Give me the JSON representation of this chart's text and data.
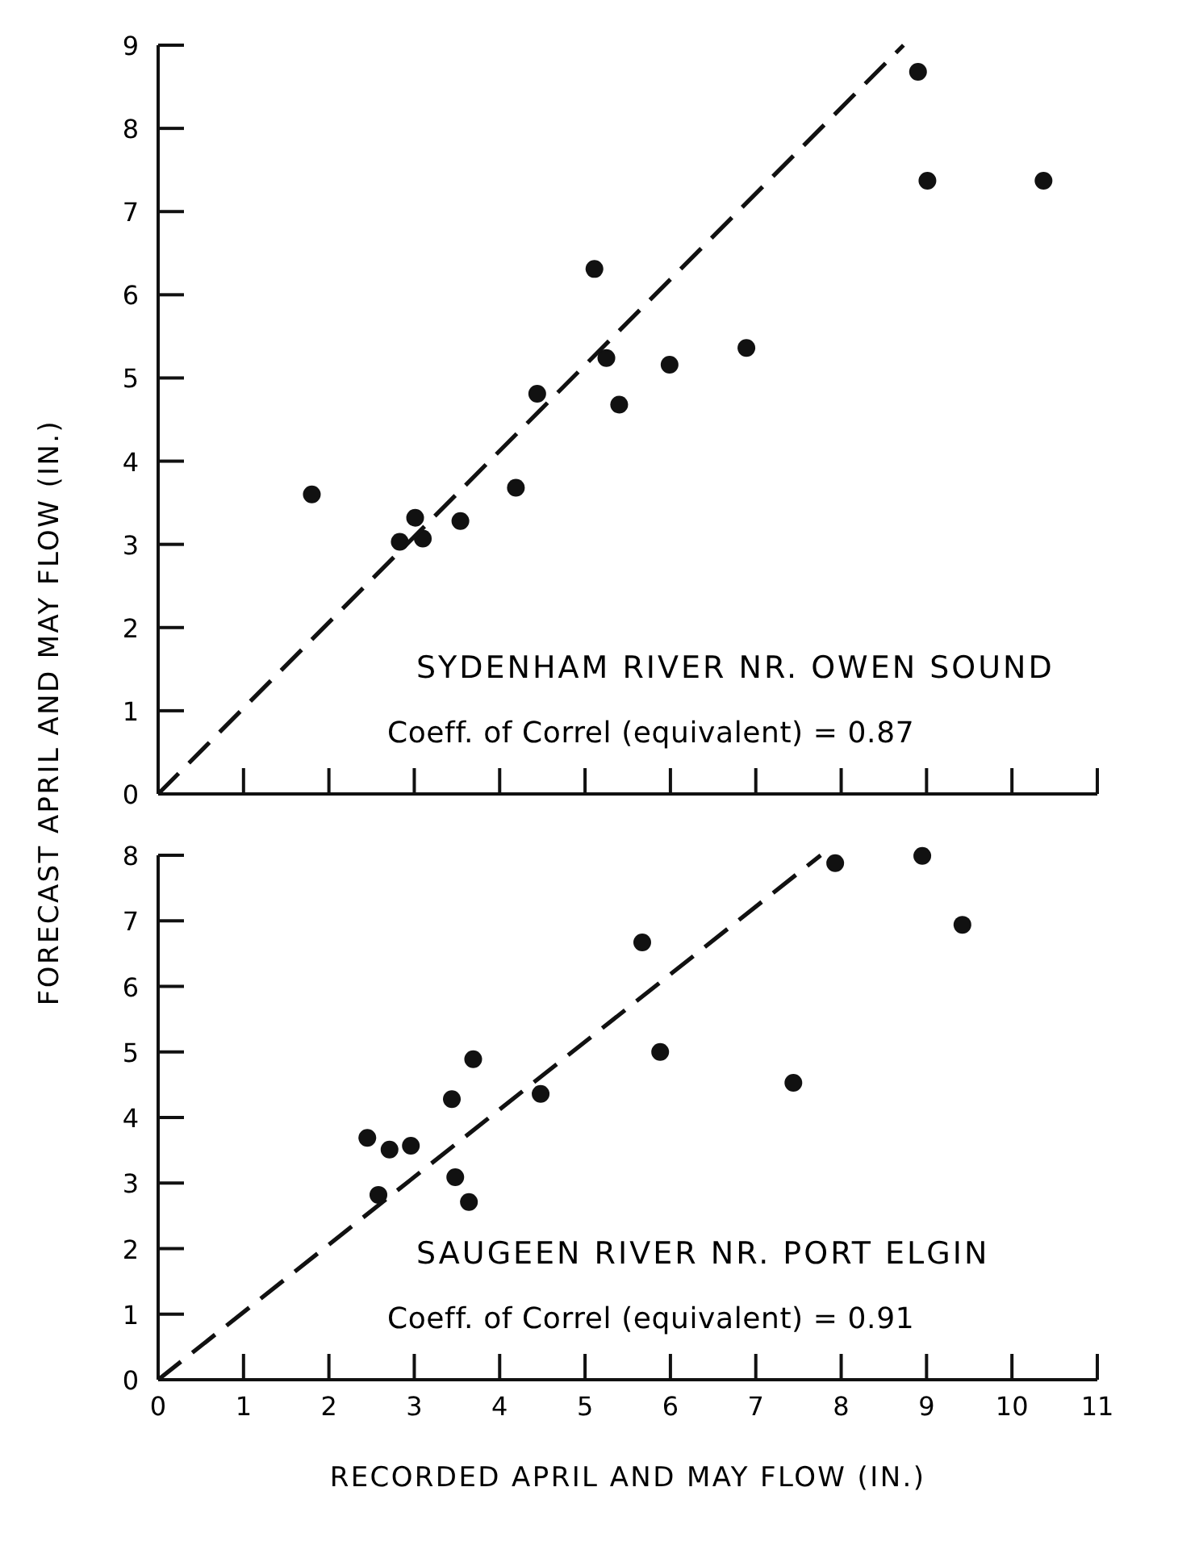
{
  "chart_data": [
    {
      "type": "scatter",
      "ylabel": "FORECAST APRIL AND MAY FLOW (IN.)",
      "xlim": [
        0,
        11
      ],
      "xticks": [
        {
          "value": 0,
          "label": null
        },
        {
          "value": 1,
          "label": null
        },
        {
          "value": 2,
          "label": null
        },
        {
          "value": 3,
          "label": null
        },
        {
          "value": 4,
          "label": null
        },
        {
          "value": 5,
          "label": null
        },
        {
          "value": 6,
          "label": null
        },
        {
          "value": 7,
          "label": null
        },
        {
          "value": 8,
          "label": null
        },
        {
          "value": 9,
          "label": null
        },
        {
          "value": 10,
          "label": null
        },
        {
          "value": 11,
          "label": null
        }
      ],
      "ylim": [
        0,
        9
      ],
      "yticks": [
        0,
        1,
        2,
        3,
        4,
        5,
        6,
        7,
        8,
        9
      ],
      "tick_labels": "y",
      "marker": "circle",
      "grid": false,
      "annotations": [
        "SYDENHAM RIVER NR. OWEN SOUND",
        "Coeff. of Correl (equivalent) = 0.87"
      ],
      "series": [
        {
          "color": "#111111",
          "x": [
            8.9,
            9.01,
            10.37,
            5.11,
            5.25,
            6.89,
            5.99,
            4.44,
            5.4,
            4.19,
            1.8,
            3.01,
            3.54,
            2.83,
            3.1
          ],
          "values": [
            8.68,
            7.37,
            7.37,
            6.31,
            5.24,
            5.36,
            5.16,
            4.81,
            4.68,
            3.68,
            3.6,
            3.32,
            3.28,
            3.03,
            3.07
          ]
        },
        {
          "type": "line",
          "color": "#111111",
          "line_style": "dashed",
          "marker": "none",
          "x": [
            0,
            8.73
          ],
          "values": [
            0,
            9
          ]
        }
      ]
    },
    {
      "type": "scatter",
      "xlabel": "RECORDED APRIL AND MAY FLOW (IN.)",
      "xlim": [
        0,
        11
      ],
      "xticks": [
        0,
        1,
        2,
        3,
        4,
        5,
        6,
        7,
        8,
        9,
        10,
        11
      ],
      "ylim": [
        0,
        8
      ],
      "yticks": [
        0,
        1,
        2,
        3,
        4,
        5,
        6,
        7,
        8
      ],
      "marker": "circle",
      "grid": false,
      "annotations": [
        "SAUGEEN RIVER NR. PORT ELGIN",
        "Coeff. of Correl (equivalent) = 0.91"
      ],
      "series": [
        {
          "color": "#111111",
          "x": [
            7.93,
            8.95,
            9.42,
            5.67,
            5.88,
            7.44,
            3.69,
            4.48,
            3.44,
            2.45,
            2.71,
            2.96,
            3.48,
            2.58,
            3.64
          ],
          "values": [
            7.88,
            7.99,
            6.94,
            6.67,
            5.0,
            4.53,
            4.89,
            4.36,
            4.28,
            3.69,
            3.51,
            3.57,
            3.09,
            2.82,
            2.71
          ]
        },
        {
          "type": "line",
          "color": "#111111",
          "line_style": "dashed",
          "marker": "none",
          "x": [
            0,
            7.76
          ],
          "values": [
            0,
            8.0
          ]
        }
      ]
    }
  ]
}
